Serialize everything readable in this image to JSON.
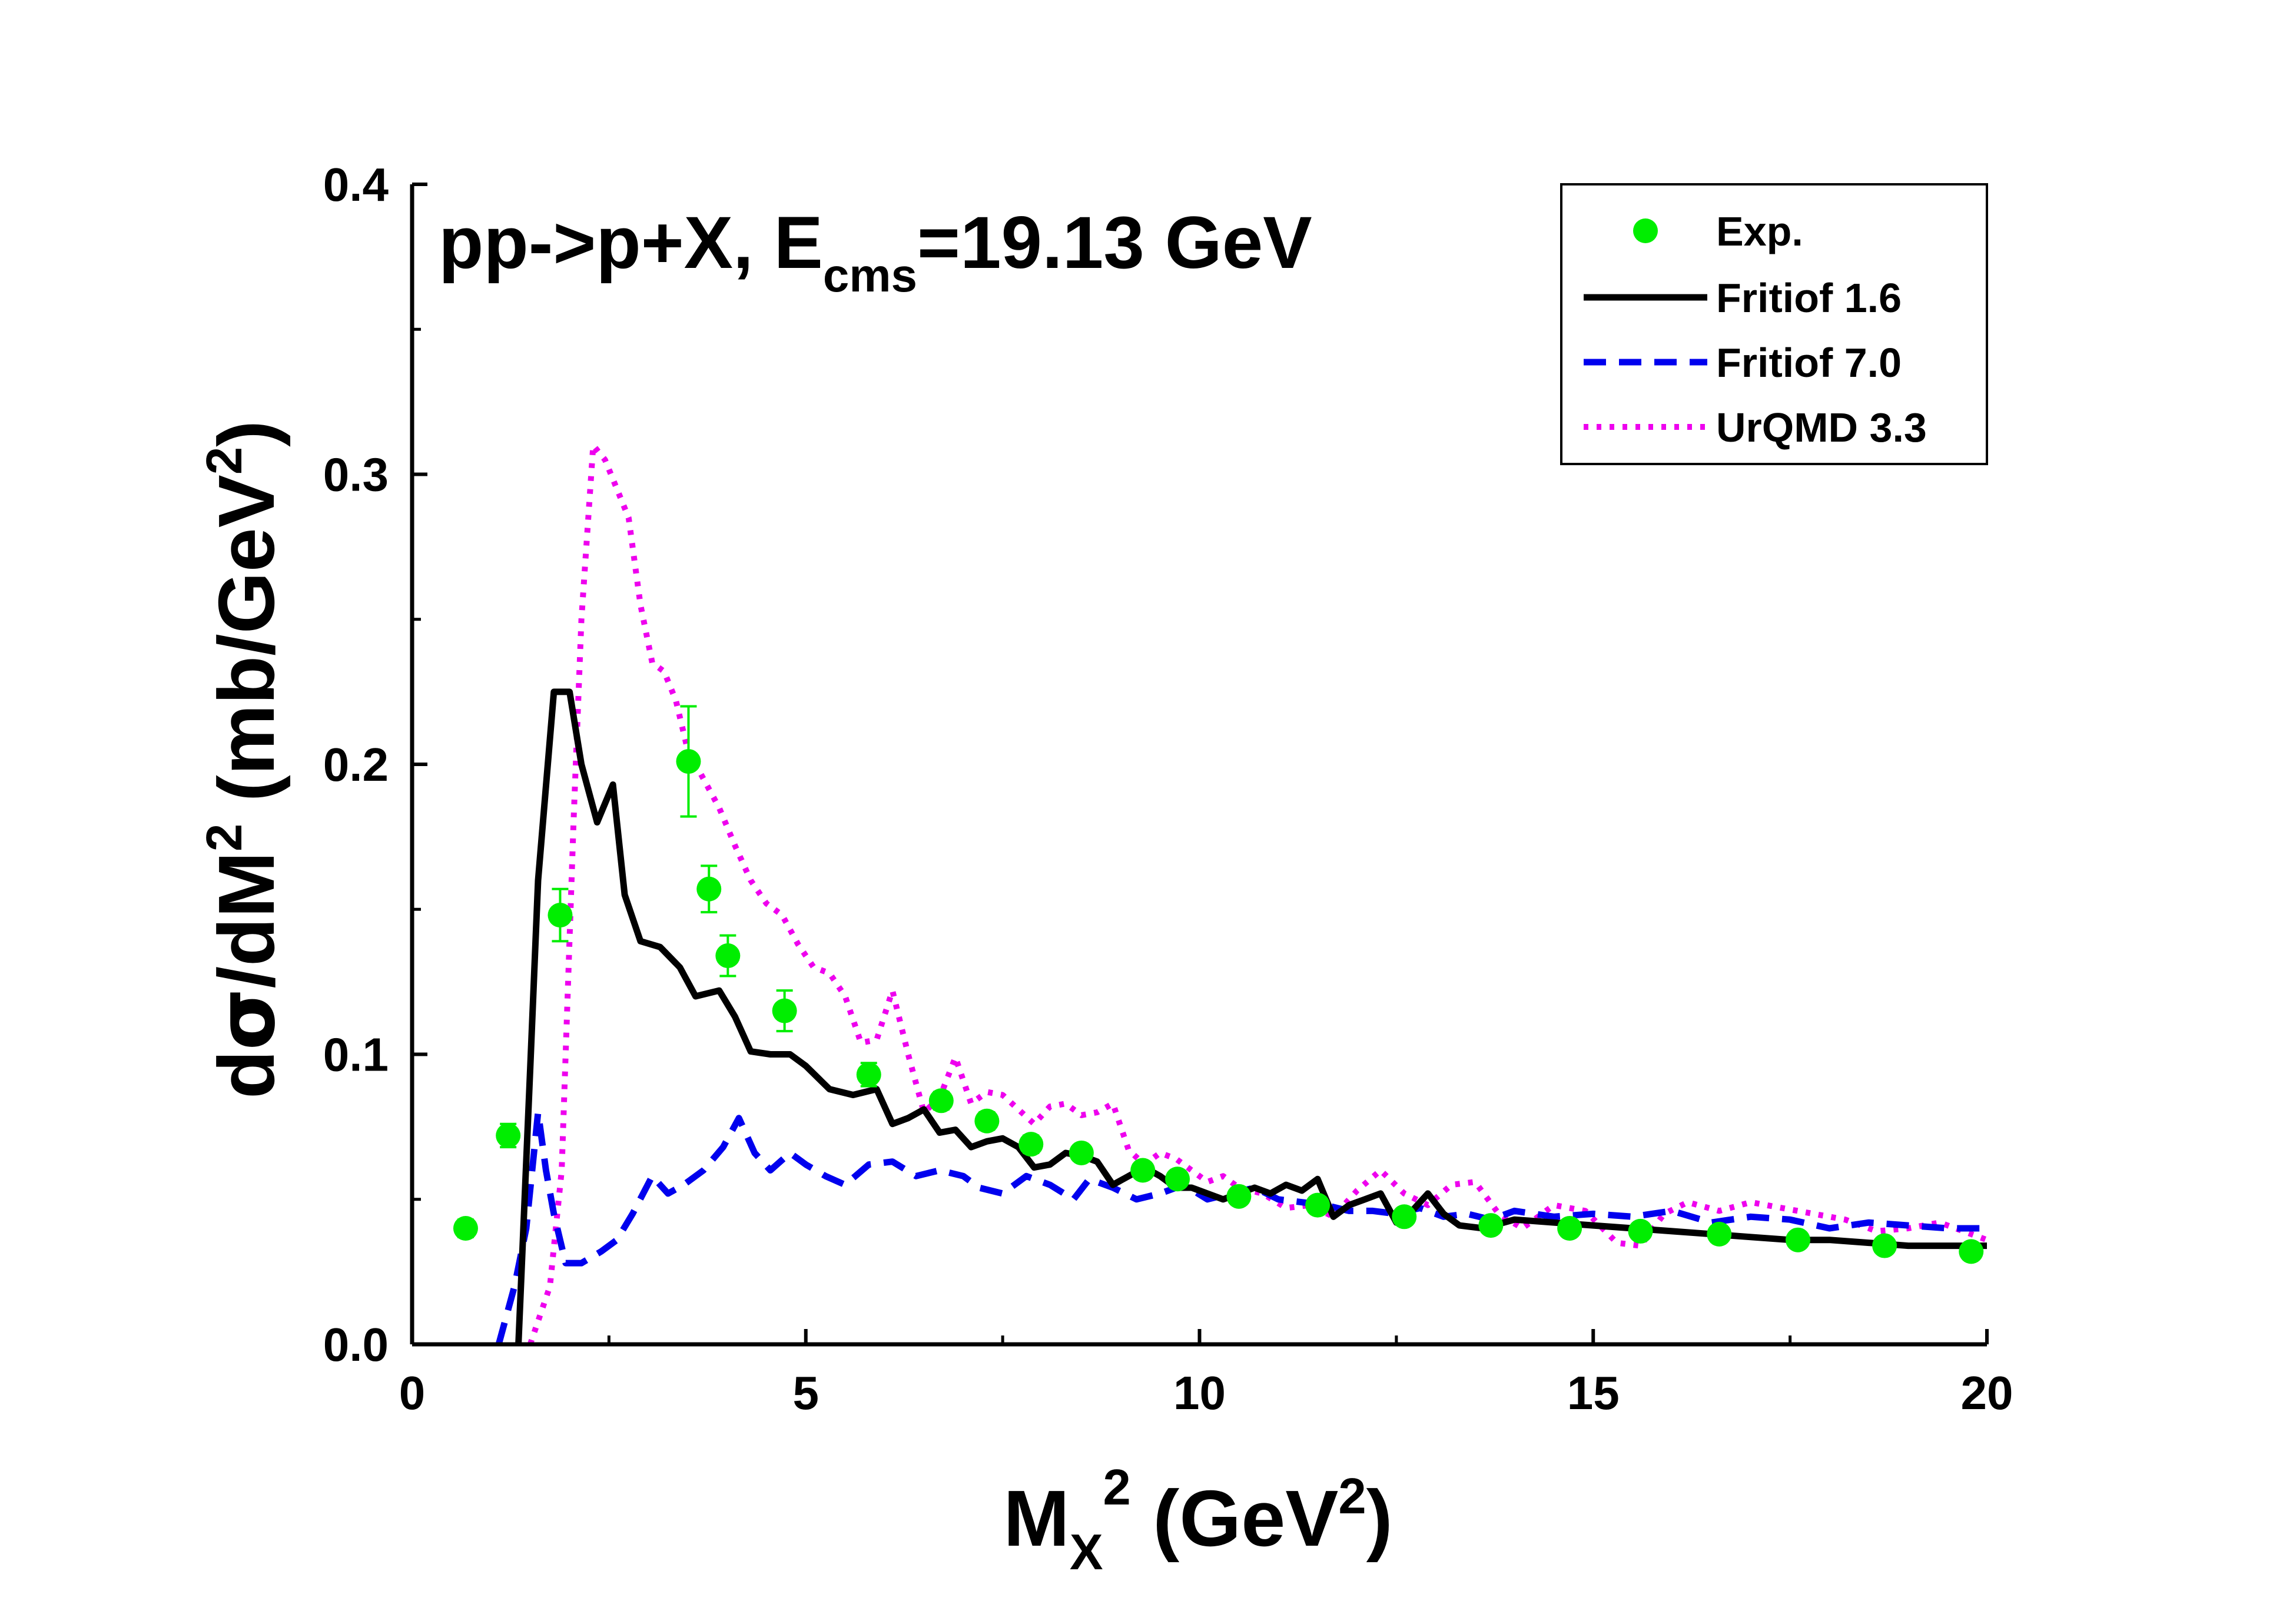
{
  "chart_data": {
    "type": "line",
    "annotation": {
      "main": "pp->p+X, E",
      "sub": "cms",
      "tail": "=19.13 GeV"
    },
    "xlabel": {
      "main": "M",
      "sub": "X",
      "sup": "2",
      "tail": " (GeV",
      "sup2": "2",
      "end": ")"
    },
    "ylabel": {
      "a": "d",
      "sigma": "σ",
      "b": "/dM",
      "sup": "2",
      "c": " (mb/GeV",
      "sup2": "2",
      "d": ")"
    },
    "xlim": [
      0,
      20
    ],
    "ylim": [
      0,
      0.4
    ],
    "xticks": [
      0,
      5,
      10,
      15,
      20
    ],
    "xtick_labels": [
      "0",
      "5",
      "10",
      "15",
      "20"
    ],
    "yticks": [
      0,
      0.1,
      0.2,
      0.3,
      0.4
    ],
    "ytick_labels": [
      "0.0",
      "0.1",
      "0.2",
      "0.3",
      "0.4"
    ],
    "legend_position": "top-right",
    "colors": {
      "exp": "#00ee00",
      "fritiof16": "#000000",
      "fritiof70": "#0000ee",
      "urqmd": "#ee00ee"
    },
    "series": [
      {
        "name": "Exp.",
        "kind": "points",
        "x": [
          0.68,
          1.22,
          1.88,
          3.51,
          3.77,
          4.01,
          4.73,
          5.8,
          6.72,
          7.3,
          7.86,
          8.5,
          9.28,
          9.72,
          10.5,
          11.5,
          12.6,
          13.7,
          14.7,
          15.6,
          16.6,
          17.6,
          18.7,
          19.8
        ],
        "y": [
          0.04,
          0.072,
          0.148,
          0.201,
          0.157,
          0.134,
          0.115,
          0.093,
          0.084,
          0.077,
          0.069,
          0.066,
          0.06,
          0.057,
          0.051,
          0.048,
          0.044,
          0.041,
          0.04,
          0.039,
          0.038,
          0.036,
          0.034,
          0.032
        ],
        "err": [
          0.003,
          0.004,
          0.009,
          0.019,
          0.008,
          0.007,
          0.007,
          0.004,
          0.003,
          0.003,
          0.003,
          0.002,
          0.002,
          0.002,
          0.002,
          0.002,
          0.002,
          0.002,
          0.002,
          0.002,
          0.002,
          0.002,
          0.002,
          0.002
        ]
      },
      {
        "name": "Fritiof 1.6",
        "kind": "solid",
        "x": [
          1.35,
          1.5,
          1.6,
          1.8,
          2.0,
          2.15,
          2.35,
          2.55,
          2.7,
          2.9,
          3.15,
          3.4,
          3.6,
          3.9,
          4.1,
          4.3,
          4.55,
          4.8,
          5.0,
          5.3,
          5.6,
          5.9,
          6.1,
          6.3,
          6.5,
          6.7,
          6.9,
          7.1,
          7.3,
          7.5,
          7.7,
          7.9,
          8.1,
          8.3,
          8.5,
          8.7,
          8.9,
          9.1,
          9.3,
          9.5,
          9.7,
          9.9,
          10.1,
          10.3,
          10.5,
          10.7,
          10.9,
          11.1,
          11.3,
          11.5,
          11.7,
          11.9,
          12.1,
          12.3,
          12.5,
          12.7,
          12.9,
          13.1,
          13.3,
          13.6,
          14.0,
          14.5,
          15.0,
          15.5,
          16.0,
          16.5,
          17.0,
          17.5,
          18.0,
          18.5,
          19.0,
          19.5,
          20.0
        ],
        "y": [
          0.0,
          0.095,
          0.16,
          0.225,
          0.225,
          0.2,
          0.18,
          0.193,
          0.155,
          0.139,
          0.137,
          0.13,
          0.12,
          0.122,
          0.113,
          0.101,
          0.1,
          0.1,
          0.096,
          0.088,
          0.086,
          0.088,
          0.076,
          0.078,
          0.081,
          0.073,
          0.074,
          0.068,
          0.07,
          0.071,
          0.068,
          0.061,
          0.062,
          0.066,
          0.065,
          0.063,
          0.055,
          0.058,
          0.061,
          0.058,
          0.054,
          0.054,
          0.052,
          0.05,
          0.052,
          0.054,
          0.052,
          0.055,
          0.053,
          0.057,
          0.044,
          0.048,
          0.05,
          0.052,
          0.042,
          0.046,
          0.052,
          0.045,
          0.041,
          0.04,
          0.043,
          0.042,
          0.041,
          0.04,
          0.039,
          0.038,
          0.037,
          0.036,
          0.036,
          0.035,
          0.034,
          0.034,
          0.034
        ]
      },
      {
        "name": "Fritiof 7.0",
        "kind": "dashed",
        "x": [
          1.1,
          1.2,
          1.3,
          1.45,
          1.6,
          1.7,
          1.8,
          1.95,
          2.15,
          2.4,
          2.6,
          2.8,
          3.05,
          3.25,
          3.45,
          3.7,
          3.95,
          4.15,
          4.35,
          4.55,
          4.8,
          5.0,
          5.25,
          5.5,
          5.8,
          6.1,
          6.4,
          6.7,
          7.0,
          7.2,
          7.5,
          7.8,
          8.1,
          8.4,
          8.6,
          8.9,
          9.2,
          9.5,
          9.8,
          10.1,
          10.4,
          10.7,
          11.0,
          11.3,
          11.6,
          11.9,
          12.2,
          12.5,
          12.8,
          13.1,
          13.4,
          13.7,
          14.0,
          14.5,
          15.0,
          15.5,
          16.0,
          16.5,
          17.0,
          17.5,
          18.0,
          18.5,
          19.0,
          19.5,
          20.0
        ],
        "y": [
          0.0,
          0.01,
          0.02,
          0.04,
          0.08,
          0.06,
          0.045,
          0.028,
          0.028,
          0.032,
          0.036,
          0.045,
          0.058,
          0.052,
          0.055,
          0.06,
          0.068,
          0.078,
          0.066,
          0.06,
          0.066,
          0.062,
          0.058,
          0.055,
          0.062,
          0.063,
          0.058,
          0.06,
          0.058,
          0.054,
          0.052,
          0.058,
          0.055,
          0.05,
          0.057,
          0.054,
          0.05,
          0.052,
          0.055,
          0.05,
          0.052,
          0.054,
          0.05,
          0.049,
          0.048,
          0.046,
          0.046,
          0.045,
          0.047,
          0.044,
          0.045,
          0.043,
          0.046,
          0.044,
          0.045,
          0.044,
          0.046,
          0.042,
          0.044,
          0.043,
          0.04,
          0.042,
          0.041,
          0.04,
          0.04
        ]
      },
      {
        "name": "UrQMD 3.3",
        "kind": "dotted",
        "x": [
          1.5,
          1.75,
          1.9,
          2.05,
          2.15,
          2.3,
          2.45,
          2.6,
          2.75,
          2.9,
          3.05,
          3.2,
          3.35,
          3.5,
          3.7,
          3.9,
          4.1,
          4.3,
          4.5,
          4.7,
          4.9,
          5.1,
          5.3,
          5.5,
          5.7,
          5.9,
          6.1,
          6.3,
          6.5,
          6.7,
          6.9,
          7.1,
          7.3,
          7.5,
          7.7,
          7.9,
          8.1,
          8.3,
          8.5,
          8.7,
          8.9,
          9.1,
          9.3,
          9.5,
          9.7,
          9.9,
          10.1,
          10.3,
          10.5,
          10.8,
          11.1,
          11.4,
          11.7,
          12.0,
          12.3,
          12.6,
          12.9,
          13.2,
          13.5,
          13.8,
          14.1,
          14.5,
          14.9,
          15.3,
          15.6,
          15.9,
          16.2,
          16.6,
          17.0,
          17.4,
          17.8,
          18.2,
          18.6,
          19.0,
          19.4,
          19.8,
          20.0
        ],
        "y": [
          0.0,
          0.02,
          0.06,
          0.18,
          0.25,
          0.31,
          0.305,
          0.295,
          0.285,
          0.255,
          0.235,
          0.232,
          0.222,
          0.205,
          0.195,
          0.185,
          0.172,
          0.16,
          0.152,
          0.148,
          0.138,
          0.13,
          0.128,
          0.12,
          0.104,
          0.105,
          0.122,
          0.1,
          0.08,
          0.085,
          0.099,
          0.083,
          0.087,
          0.086,
          0.081,
          0.076,
          0.082,
          0.083,
          0.079,
          0.08,
          0.083,
          0.067,
          0.062,
          0.066,
          0.064,
          0.06,
          0.056,
          0.058,
          0.054,
          0.052,
          0.047,
          0.048,
          0.044,
          0.053,
          0.06,
          0.052,
          0.048,
          0.055,
          0.056,
          0.045,
          0.04,
          0.048,
          0.046,
          0.035,
          0.034,
          0.045,
          0.049,
          0.046,
          0.049,
          0.047,
          0.045,
          0.043,
          0.039,
          0.04,
          0.042,
          0.038,
          0.036
        ]
      }
    ]
  }
}
